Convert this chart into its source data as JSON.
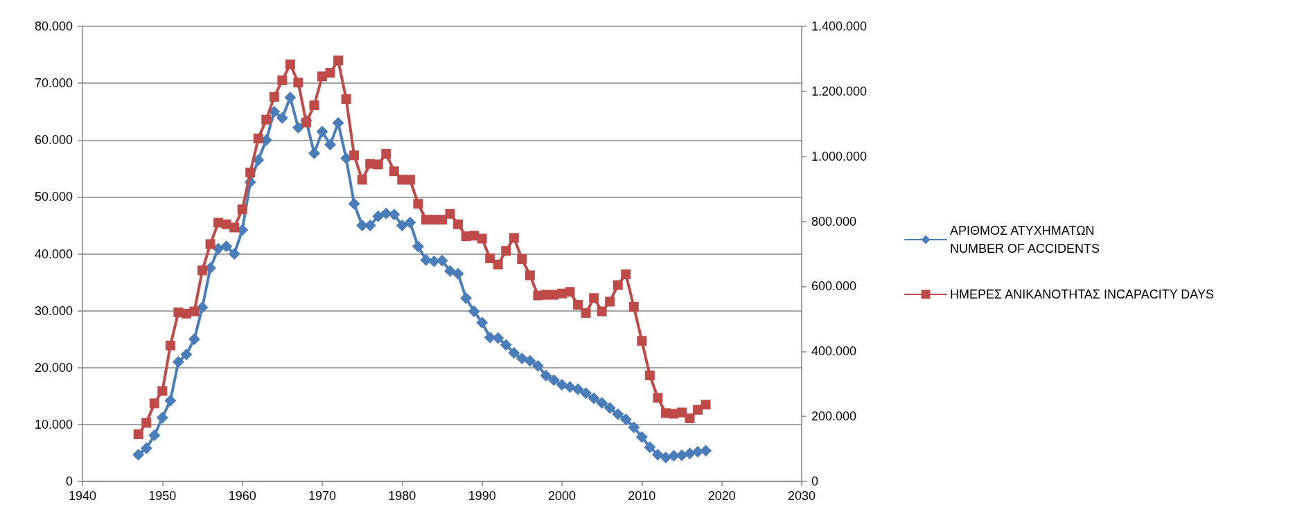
{
  "chart_data": {
    "type": "line",
    "x": [
      1947,
      1948,
      1949,
      1950,
      1951,
      1952,
      1953,
      1954,
      1955,
      1956,
      1957,
      1958,
      1959,
      1960,
      1961,
      1962,
      1963,
      1964,
      1965,
      1966,
      1967,
      1968,
      1969,
      1970,
      1971,
      1972,
      1973,
      1974,
      1975,
      1976,
      1977,
      1978,
      1979,
      1980,
      1981,
      1982,
      1983,
      1984,
      1985,
      1986,
      1987,
      1988,
      1989,
      1990,
      1991,
      1992,
      1993,
      1994,
      1995,
      1996,
      1997,
      1998,
      1999,
      2000,
      2001,
      2002,
      2003,
      2004,
      2005,
      2006,
      2007,
      2008,
      2009,
      2010,
      2011,
      2012,
      2013,
      2014,
      2015,
      2016,
      2017,
      2018
    ],
    "series": [
      {
        "name": "ΑΡΙΘΜΟΣ ΑΤΥΧΗΜΑΤΩΝ NUMBER OF ACCIDENTS",
        "color": "#4a7ebb",
        "marker": "diamond",
        "values": [
          4700,
          5800,
          8100,
          11200,
          14200,
          21000,
          22300,
          25000,
          30600,
          37500,
          40900,
          41300,
          40000,
          44200,
          52600,
          56500,
          60000,
          65000,
          63900,
          67500,
          62200,
          63400,
          57700,
          61500,
          59200,
          63000,
          56800,
          48800,
          45000,
          45000,
          46600,
          47100,
          46900,
          45000,
          45500,
          41300,
          38900,
          38700,
          38800,
          37000,
          36500,
          32200,
          29900,
          27900,
          25300,
          25200,
          24000,
          22600,
          21600,
          21200,
          20300,
          18600,
          17800,
          17000,
          16600,
          16200,
          15500,
          14600,
          13800,
          12900,
          11800,
          10900,
          9500,
          7800,
          6000,
          4700,
          4200,
          4500,
          4600,
          4900,
          5200,
          5400
        ]
      },
      {
        "name": "ΗΜΕΡΕΣ ΑΝΙΚΑΝΟΤΗΤΑΣ INCAPACITY DAYS",
        "color": "#be4b48",
        "marker": "square",
        "axis": "y2",
        "values": [
          145000,
          180000,
          240000,
          278000,
          418000,
          520000,
          516000,
          523000,
          649000,
          730000,
          796000,
          791000,
          781000,
          837000,
          950000,
          1055000,
          1113000,
          1183000,
          1234000,
          1283000,
          1227000,
          1104000,
          1157000,
          1246000,
          1257000,
          1295000,
          1176000,
          1003000,
          928000,
          977000,
          975000,
          1008000,
          954000,
          928000,
          928000,
          854000,
          805000,
          805000,
          805000,
          823000,
          791000,
          754000,
          756000,
          747000,
          686000,
          667000,
          709000,
          749000,
          684000,
          634000,
          572000,
          574000,
          574000,
          578000,
          583000,
          543000,
          518000,
          564000,
          523000,
          553000,
          604000,
          637000,
          537000,
          432000,
          326000,
          257000,
          210000,
          208000,
          212000,
          194000,
          220000,
          236000
        ]
      }
    ],
    "xlim": [
      1940,
      2030
    ],
    "xticks": [
      1940,
      1950,
      1960,
      1970,
      1980,
      1990,
      2000,
      2010,
      2020,
      2030
    ],
    "ylim": [
      0,
      80000
    ],
    "yticks": [
      0,
      {
        "value": 10000,
        "label": "10.000"
      },
      {
        "value": 20000,
        "label": "20.000"
      },
      {
        "value": 30000,
        "label": "30.000"
      },
      {
        "value": 40000,
        "label": "40.000"
      },
      {
        "value": 50000,
        "label": "50.000"
      },
      {
        "value": 60000,
        "label": "60.000"
      },
      {
        "value": 70000,
        "label": "70.000"
      },
      {
        "value": 80000,
        "label": "80.000"
      }
    ],
    "y2lim": [
      0,
      1400000
    ],
    "y2ticks": [
      0,
      {
        "value": 200000,
        "label": "200.000"
      },
      {
        "value": 400000,
        "label": "400.000"
      },
      {
        "value": 600000,
        "label": "600.000"
      },
      {
        "value": 800000,
        "label": "800.000"
      },
      {
        "value": 1000000,
        "label": "1.000.000"
      },
      {
        "value": 1200000,
        "label": "1.200.000"
      },
      {
        "value": 1400000,
        "label": "1.400.000"
      }
    ],
    "grid": "y",
    "legend": "right",
    "line_style": "solid"
  }
}
